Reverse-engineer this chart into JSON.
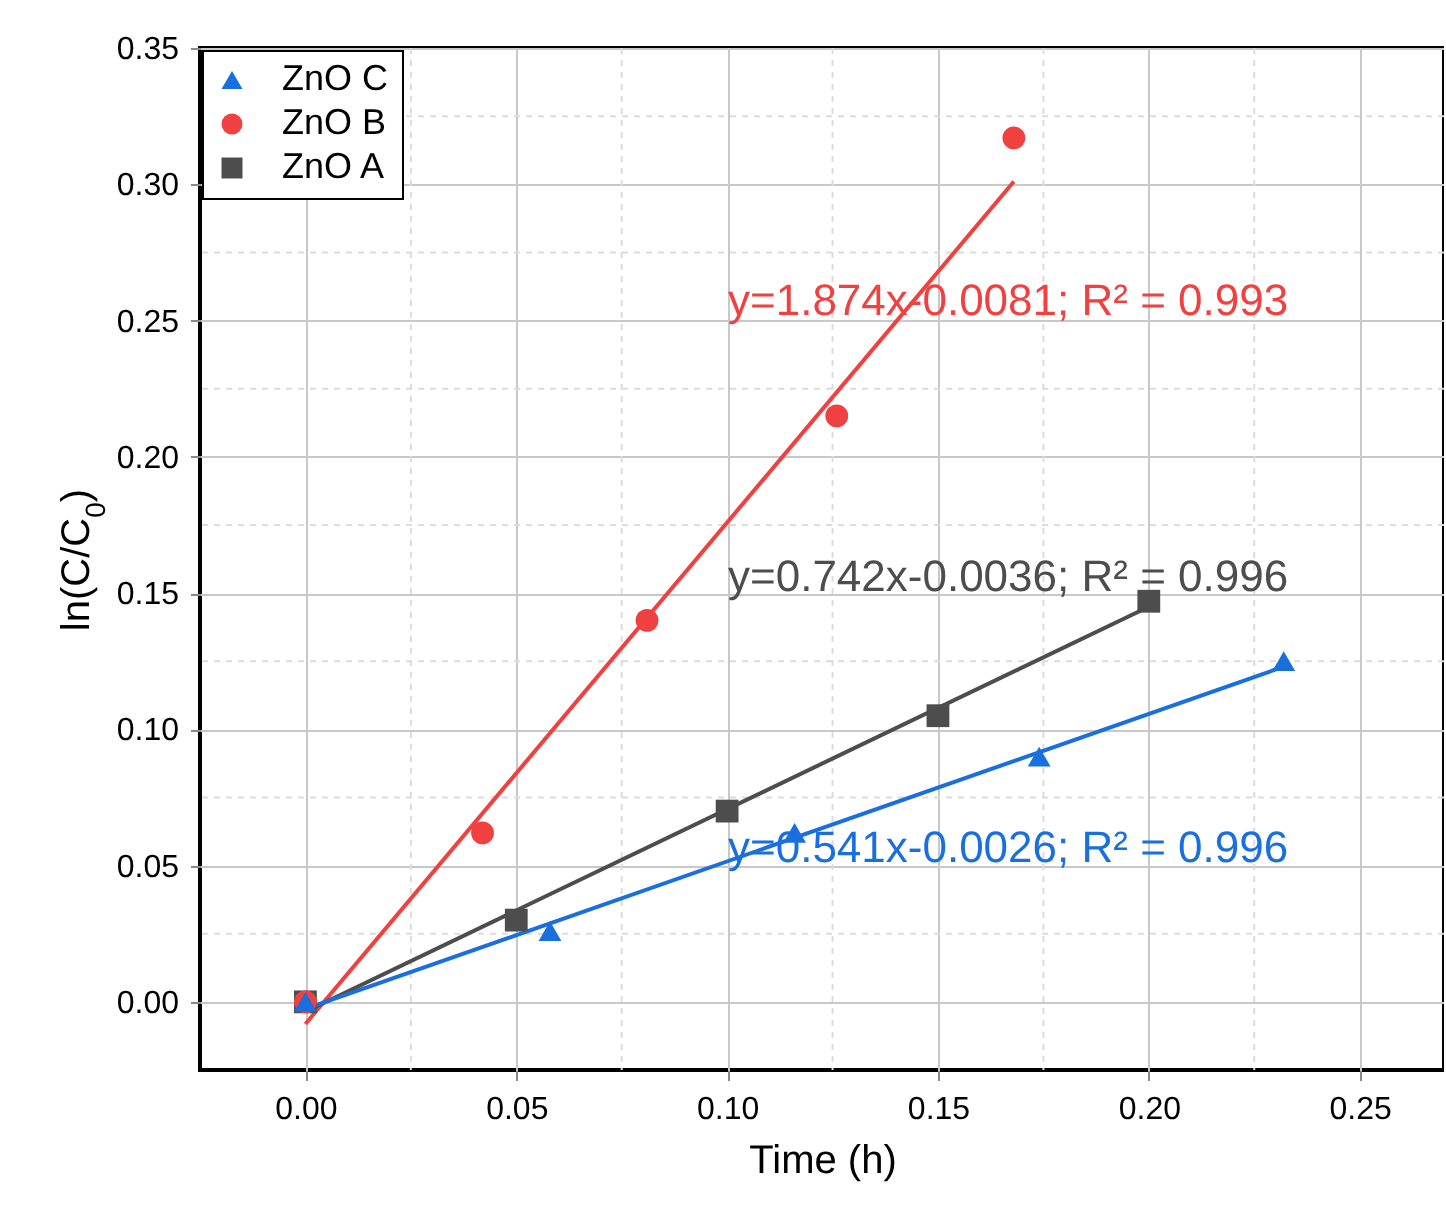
{
  "chart_data": {
    "type": "scatter",
    "xlabel": "Time (h)",
    "ylabel": "ln(C/C$_{0}$)",
    "xlim": [
      -0.025,
      0.27
    ],
    "ylim": [
      -0.025,
      0.35
    ],
    "xticks": [
      {
        "value": 0,
        "label": "0.00"
      },
      {
        "value": 0.025,
        "label": null
      },
      {
        "value": 0.05,
        "label": "0.05"
      },
      {
        "value": 0.075,
        "label": null
      },
      {
        "value": 0.1,
        "label": "0.10"
      },
      {
        "value": 0.125,
        "label": null
      },
      {
        "value": 0.15,
        "label": "0.15"
      },
      {
        "value": 0.175,
        "label": null
      },
      {
        "value": 0.2,
        "label": "0.20"
      },
      {
        "value": 0.225,
        "label": null
      },
      {
        "value": 0.25,
        "label": "0.25"
      }
    ],
    "yticks": [
      {
        "value": 0,
        "label": "0.00"
      },
      {
        "value": 0.025,
        "label": null
      },
      {
        "value": 0.05,
        "label": "0.05"
      },
      {
        "value": 0.075,
        "label": null
      },
      {
        "value": 0.1,
        "label": "0.10"
      },
      {
        "value": 0.125,
        "label": null
      },
      {
        "value": 0.15,
        "label": "0.15"
      },
      {
        "value": 0.175,
        "label": null
      },
      {
        "value": 0.2,
        "label": "0.20"
      },
      {
        "value": 0.225,
        "label": null
      },
      {
        "value": 0.25,
        "label": "0.25"
      },
      {
        "value": 0.275,
        "label": null
      },
      {
        "value": 0.3,
        "label": "0.30"
      },
      {
        "value": 0.325,
        "label": null
      },
      {
        "value": 0.35,
        "label": "0.35"
      }
    ],
    "grid": true,
    "legend": "top left",
    "series": [
      {
        "name": "ZnO C",
        "color": "#1a6fdf",
        "marker": "triangle",
        "x": [
          0,
          0.058,
          0.116,
          0.174,
          0.232
        ],
        "values": [
          0,
          0.026,
          0.062,
          0.09,
          0.125
        ]
      },
      {
        "name": "ZnO B",
        "color": "#f04040",
        "marker": "circle",
        "x": [
          0,
          0.042,
          0.081,
          0.126,
          0.168
        ],
        "values": [
          0,
          0.062,
          0.14,
          0.215,
          0.317
        ]
      },
      {
        "name": "ZnO A",
        "color": "#4d4d4d",
        "marker": "square",
        "x": [
          0,
          0.05,
          0.1,
          0.15,
          0.2
        ],
        "values": [
          0,
          0.03,
          0.07,
          0.105,
          0.147
        ]
      },
      {
        "color": "#f04040",
        "type": "line",
        "x": [
          0,
          0.168
        ],
        "values": [
          -0.0081,
          0.301
        ]
      },
      {
        "color": "#4d4d4d",
        "type": "line",
        "x": [
          0,
          0.2
        ],
        "values": [
          -0.0036,
          0.145
        ]
      },
      {
        "color": "#1a6fdf",
        "type": "line",
        "x": [
          0,
          0.232
        ],
        "values": [
          -0.0026,
          0.123
        ]
      }
    ],
    "annotations": [
      "y=1.874x-0.0081; R² = 0.993",
      "y=0.742x-0.0036; R² = 0.996",
      "y=0.541x-0.0026; R² = 0.996"
    ]
  }
}
